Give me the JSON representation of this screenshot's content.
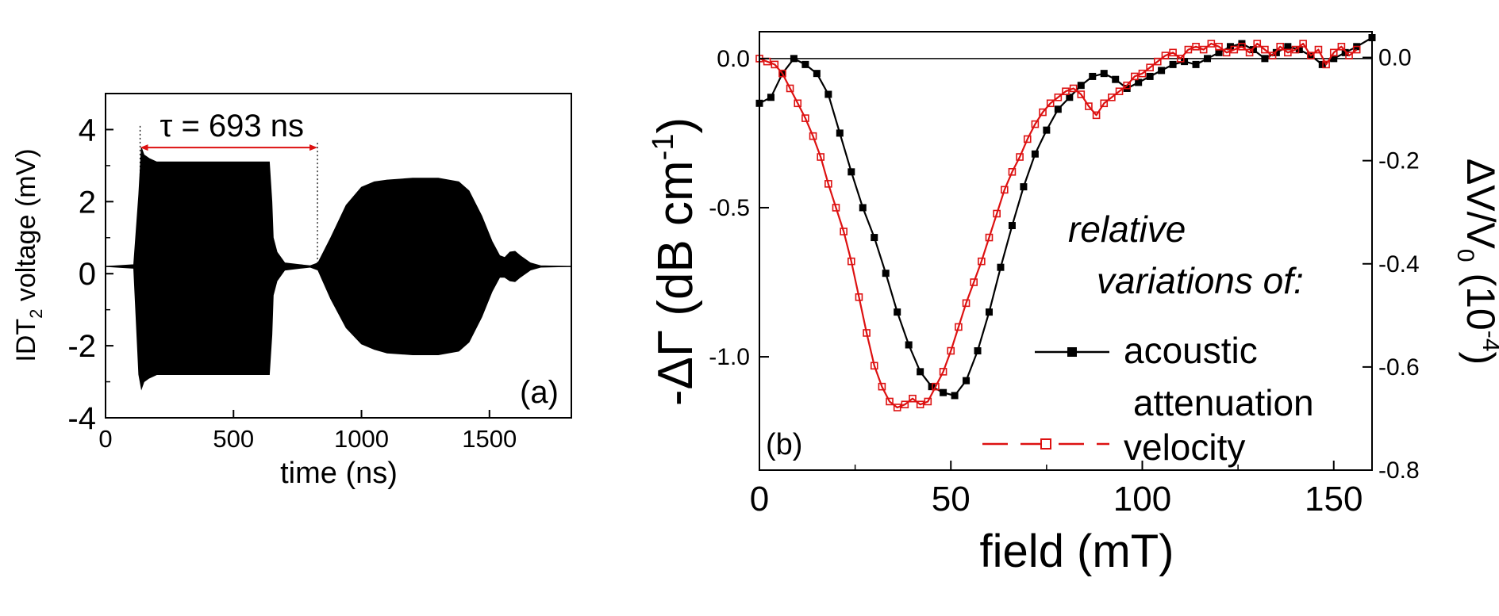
{
  "chart_data": [
    {
      "id": "a",
      "type": "line",
      "panel_label": "(a)",
      "xlabel": "time (ns)",
      "ylabel_main": "IDT",
      "ylabel_sub": "2",
      "ylabel_rest": " voltage (mV)",
      "xlim": [
        0,
        1820
      ],
      "ylim": [
        -4,
        5
      ],
      "xticks": [
        0,
        500,
        1000,
        1500
      ],
      "xtick_labels": [
        "0",
        "500",
        "1000",
        "1500"
      ],
      "yticks": [
        -4,
        -2,
        0,
        2,
        4
      ],
      "ytick_labels": [
        "-4",
        "-2",
        "0",
        "2",
        "4"
      ],
      "baseline": 0.2,
      "annotation": {
        "text": "τ = 693 ns",
        "x_start": 135,
        "x_end": 828,
        "y": 3.5
      },
      "envelope": {
        "x": [
          0,
          110,
          130,
          140,
          150,
          170,
          200,
          300,
          500,
          640,
          650,
          655,
          670,
          700,
          760,
          800,
          830,
          880,
          940,
          1000,
          1050,
          1100,
          1200,
          1300,
          1380,
          1420,
          1470,
          1510,
          1540,
          1560,
          1580,
          1600,
          1620,
          1660,
          1700,
          1820
        ],
        "upper": [
          0.2,
          0.25,
          2.2,
          3.5,
          3.3,
          3.2,
          3.1,
          3.1,
          3.1,
          3.1,
          2.0,
          1.0,
          0.6,
          0.3,
          0.25,
          0.22,
          0.3,
          1.0,
          1.9,
          2.4,
          2.55,
          2.6,
          2.65,
          2.65,
          2.55,
          2.3,
          1.6,
          0.9,
          0.5,
          0.45,
          0.6,
          0.62,
          0.5,
          0.3,
          0.22,
          0.2
        ],
        "lower": [
          0.2,
          0.15,
          -2.8,
          -3.2,
          -3.0,
          -2.9,
          -2.8,
          -2.8,
          -2.8,
          -2.8,
          -1.7,
          -0.6,
          -0.2,
          0.1,
          0.15,
          0.18,
          0.1,
          -0.7,
          -1.5,
          -1.95,
          -2.1,
          -2.2,
          -2.25,
          -2.25,
          -2.15,
          -1.9,
          -1.2,
          -0.5,
          -0.1,
          -0.1,
          -0.2,
          -0.22,
          -0.1,
          0.1,
          0.18,
          0.2
        ]
      }
    },
    {
      "id": "b",
      "type": "line",
      "panel_label": "(b)",
      "xlabel": "field (mT)",
      "ylabel_left": "-ΔΓ (dB cm",
      "ylabel_left_sup": "-1",
      "ylabel_left_close": ")",
      "ylabel_right_a": "ΔV/V",
      "ylabel_right_sub": "0",
      "ylabel_right_b": " (10",
      "ylabel_right_sup": "-4",
      "ylabel_right_c": ")",
      "xlim": [
        0,
        160
      ],
      "ylim": [
        -1.38,
        0.09
      ],
      "ylim_right": [
        -0.8,
        0.05
      ],
      "xticks": [
        0,
        50,
        100,
        150
      ],
      "xtick_labels": [
        "0",
        "50",
        "100",
        "150"
      ],
      "yticks": [
        0.0,
        -0.5,
        -1.0
      ],
      "ytick_labels": [
        "0.0",
        "-0.5",
        "-1.0"
      ],
      "yticks_right": [
        0.0,
        -0.2,
        -0.4,
        -0.6,
        -0.8
      ],
      "ytick_right_labels": [
        "0.0",
        "-0.2",
        "-0.4",
        "-0.6",
        "-0.8"
      ],
      "annotation": {
        "line1": "relative",
        "line2": "variations of:"
      },
      "series": [
        {
          "name": "acoustic",
          "name_line2": "attenuation",
          "axis": "left",
          "color": "#000000",
          "marker": "filled-square",
          "x": [
            0,
            3,
            6,
            9,
            12,
            15,
            18,
            21,
            24,
            27,
            30,
            33,
            36,
            39,
            42,
            45,
            48,
            51,
            54,
            57,
            60,
            63,
            66,
            69,
            72,
            75,
            78,
            81,
            84,
            87,
            90,
            93,
            96,
            99,
            102,
            105,
            108,
            111,
            114,
            117,
            120,
            123,
            126,
            129,
            132,
            135,
            138,
            141,
            144,
            147,
            150,
            153,
            156,
            160
          ],
          "y": [
            -0.15,
            -0.13,
            -0.05,
            0.0,
            -0.02,
            -0.05,
            -0.12,
            -0.25,
            -0.38,
            -0.5,
            -0.6,
            -0.72,
            -0.85,
            -0.96,
            -1.05,
            -1.1,
            -1.12,
            -1.13,
            -1.08,
            -0.98,
            -0.85,
            -0.7,
            -0.56,
            -0.43,
            -0.32,
            -0.24,
            -0.17,
            -0.13,
            -0.09,
            -0.06,
            -0.05,
            -0.07,
            -0.1,
            -0.08,
            -0.06,
            -0.04,
            -0.02,
            -0.01,
            -0.02,
            0.0,
            0.02,
            0.04,
            0.05,
            0.03,
            0.0,
            0.02,
            0.04,
            0.03,
            0.01,
            -0.02,
            0.0,
            0.02,
            0.04,
            0.07
          ]
        },
        {
          "name": "velocity",
          "axis": "left",
          "color": "#dd1111",
          "marker": "open-square",
          "x": [
            0,
            2,
            4,
            6,
            8,
            10,
            12,
            14,
            16,
            18,
            20,
            22,
            24,
            26,
            28,
            30,
            32,
            34,
            36,
            38,
            40,
            42,
            44,
            46,
            48,
            50,
            52,
            54,
            56,
            58,
            60,
            62,
            64,
            66,
            68,
            70,
            72,
            74,
            76,
            78,
            80,
            82,
            84,
            86,
            88,
            90,
            92,
            94,
            96,
            98,
            100,
            102,
            104,
            106,
            108,
            110,
            112,
            114,
            116,
            118,
            120,
            122,
            124,
            126,
            128,
            130,
            132,
            134,
            136,
            138,
            140,
            142,
            144,
            146,
            148,
            150,
            152,
            154,
            156
          ],
          "y": [
            0.0,
            -0.01,
            -0.02,
            -0.05,
            -0.1,
            -0.15,
            -0.2,
            -0.26,
            -0.33,
            -0.42,
            -0.5,
            -0.58,
            -0.68,
            -0.8,
            -0.92,
            -1.03,
            -1.1,
            -1.15,
            -1.17,
            -1.16,
            -1.14,
            -1.16,
            -1.15,
            -1.1,
            -1.05,
            -0.98,
            -0.9,
            -0.82,
            -0.75,
            -0.68,
            -0.6,
            -0.52,
            -0.44,
            -0.38,
            -0.33,
            -0.27,
            -0.22,
            -0.18,
            -0.15,
            -0.13,
            -0.11,
            -0.1,
            -0.12,
            -0.16,
            -0.19,
            -0.15,
            -0.13,
            -0.11,
            -0.09,
            -0.06,
            -0.05,
            -0.03,
            -0.01,
            0.01,
            0.02,
            0.0,
            0.03,
            0.04,
            0.03,
            0.05,
            0.04,
            0.02,
            0.03,
            0.04,
            0.02,
            0.05,
            0.03,
            0.01,
            0.04,
            0.02,
            0.03,
            0.05,
            0.01,
            0.03,
            -0.02,
            0.02,
            0.04,
            0.01,
            0.03
          ]
        }
      ]
    }
  ]
}
